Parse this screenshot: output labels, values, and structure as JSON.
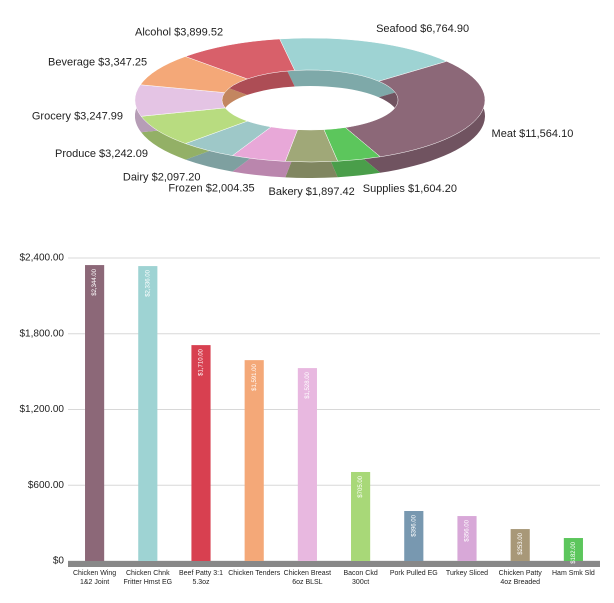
{
  "chart_data": [
    {
      "type": "donut",
      "categories": [
        "Seafood",
        "Meat",
        "Supplies",
        "Bakery",
        "Frozen",
        "Dairy",
        "Produce",
        "Grocery",
        "Beverage",
        "Alcohol"
      ],
      "values": [
        6764.9,
        11564.1,
        1604.2,
        1897.42,
        2004.35,
        2097.2,
        3242.09,
        3247.99,
        3347.25,
        3899.52
      ],
      "value_labels": [
        "$6,764.90",
        "$11,564.10",
        "$1,604.20",
        "$1,897.42",
        "$2,004.35",
        "$2,097.20",
        "$3,242.09",
        "$3,247.99",
        "$3,347.25",
        "$3,899.52"
      ],
      "colors": [
        "#9ed3d3",
        "#8c6878",
        "#5cc65c",
        "#a0a878",
        "#e8a8d8",
        "#9ec8c8",
        "#b8dc80",
        "#e4c4e4",
        "#f4a878",
        "#d8606a"
      ]
    },
    {
      "type": "bar",
      "categories": [
        "Chicken Wing\n1&2 Joint",
        "Chicken Chnk\nFritter Hmst EG",
        "Beef Patty 3:1\n5.3oz",
        "Chicken Tenders",
        "Chicken Breast\n6oz BLSL",
        "Bacon Ckd\n300ct",
        "Pork Pulled EG",
        "Turkey Sliced",
        "Chicken Patty\n4oz Breaded",
        "Ham Smk Sld"
      ],
      "values": [
        2344,
        2336,
        1710,
        1591,
        1528,
        705,
        396,
        356,
        253,
        182
      ],
      "value_labels": [
        "$2,344.00",
        "$2,336.00",
        "$1,710.00",
        "$1,591.00",
        "$1,528.00",
        "$705.00",
        "$396.00",
        "$356.00",
        "$253.00",
        "$182.00"
      ],
      "colors": [
        "#8c6878",
        "#9ed3d3",
        "#d84050",
        "#f4a878",
        "#e8b8e0",
        "#a8d878",
        "#7898b0",
        "#d8a8d8",
        "#a89878",
        "#5cc65c"
      ],
      "ylim": [
        0,
        2400
      ],
      "yticks": [
        {
          "value": 0,
          "label": "$0"
        },
        {
          "value": 600,
          "label": "$600.00"
        },
        {
          "value": 1200,
          "label": "$1,200.00"
        },
        {
          "value": 1800,
          "label": "$1,800.00"
        },
        {
          "value": 2400,
          "label": "$2,400.00"
        }
      ],
      "grid": true
    }
  ]
}
